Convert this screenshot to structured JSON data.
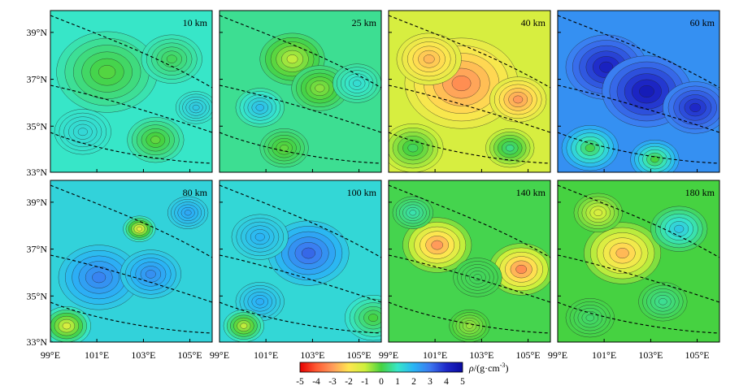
{
  "panels": [
    {
      "label": "10 km",
      "mode": "mixed"
    },
    {
      "label": "25 km",
      "mode": "mixed"
    },
    {
      "label": "40 km",
      "mode": "neg"
    },
    {
      "label": "60 km",
      "mode": "pos"
    },
    {
      "label": "80 km",
      "mode": "pos_light"
    },
    {
      "label": "100 km",
      "mode": "pos_light"
    },
    {
      "label": "140 km",
      "mode": "neg"
    },
    {
      "label": "180 km",
      "mode": "neg_light"
    }
  ],
  "lat_ticks": [
    "39°N",
    "37°N",
    "35°N",
    "33°N"
  ],
  "lon_ticks": [
    "99°E",
    "101°E",
    "103°E",
    "105°E"
  ],
  "colorbar": {
    "title_symbol": "ρ",
    "title_unit": "/(g·cm",
    "title_exp": "-3",
    "title_close": ")",
    "min": -5,
    "max": 5,
    "ticks": [
      "-5",
      "-4",
      "-3",
      "-2",
      "-1",
      "0",
      "1",
      "2",
      "3",
      "4",
      "5"
    ]
  },
  "colors": {
    "scale": [
      "#e60000",
      "#ff5a32",
      "#ff9b5a",
      "#ffe650",
      "#cdf03c",
      "#46d241",
      "#37e6c8",
      "#2ab4f5",
      "#3c78f0",
      "#1e28c8",
      "#0a0aa0"
    ]
  }
}
